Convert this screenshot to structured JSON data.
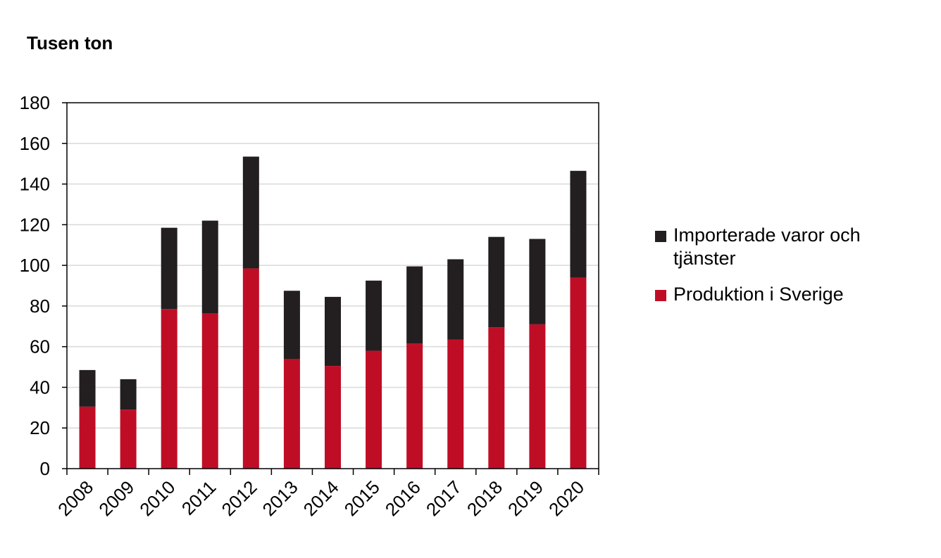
{
  "chart_data": {
    "type": "bar",
    "stacked": true,
    "unit_label": "Tusen ton",
    "categories": [
      "2008",
      "2009",
      "2010",
      "2011",
      "2012",
      "2013",
      "2014",
      "2015",
      "2016",
      "2017",
      "2018",
      "2019",
      "2020"
    ],
    "series": [
      {
        "name": "Produktion i Sverige",
        "color": "#c00d26",
        "values": [
          30.5,
          29,
          78.5,
          76.5,
          98.5,
          54,
          50.5,
          58,
          61.5,
          63.5,
          69.5,
          71,
          94
        ]
      },
      {
        "name": "Importerade varor och tjänster",
        "color": "#231f20",
        "values": [
          18,
          15,
          40,
          45.5,
          55,
          33.5,
          34,
          34.5,
          38,
          39.5,
          44.5,
          42,
          52.5
        ]
      }
    ],
    "ylim": [
      0,
      180
    ],
    "yticks": [
      0,
      20,
      40,
      60,
      80,
      100,
      120,
      140,
      160,
      180
    ],
    "gridlines": true,
    "legend_position": "right"
  },
  "legend": {
    "items": [
      {
        "label": "Importerade varor och tjänster",
        "color": "#231f20"
      },
      {
        "label": "Produktion i Sverige",
        "color": "#c00d26"
      }
    ]
  }
}
